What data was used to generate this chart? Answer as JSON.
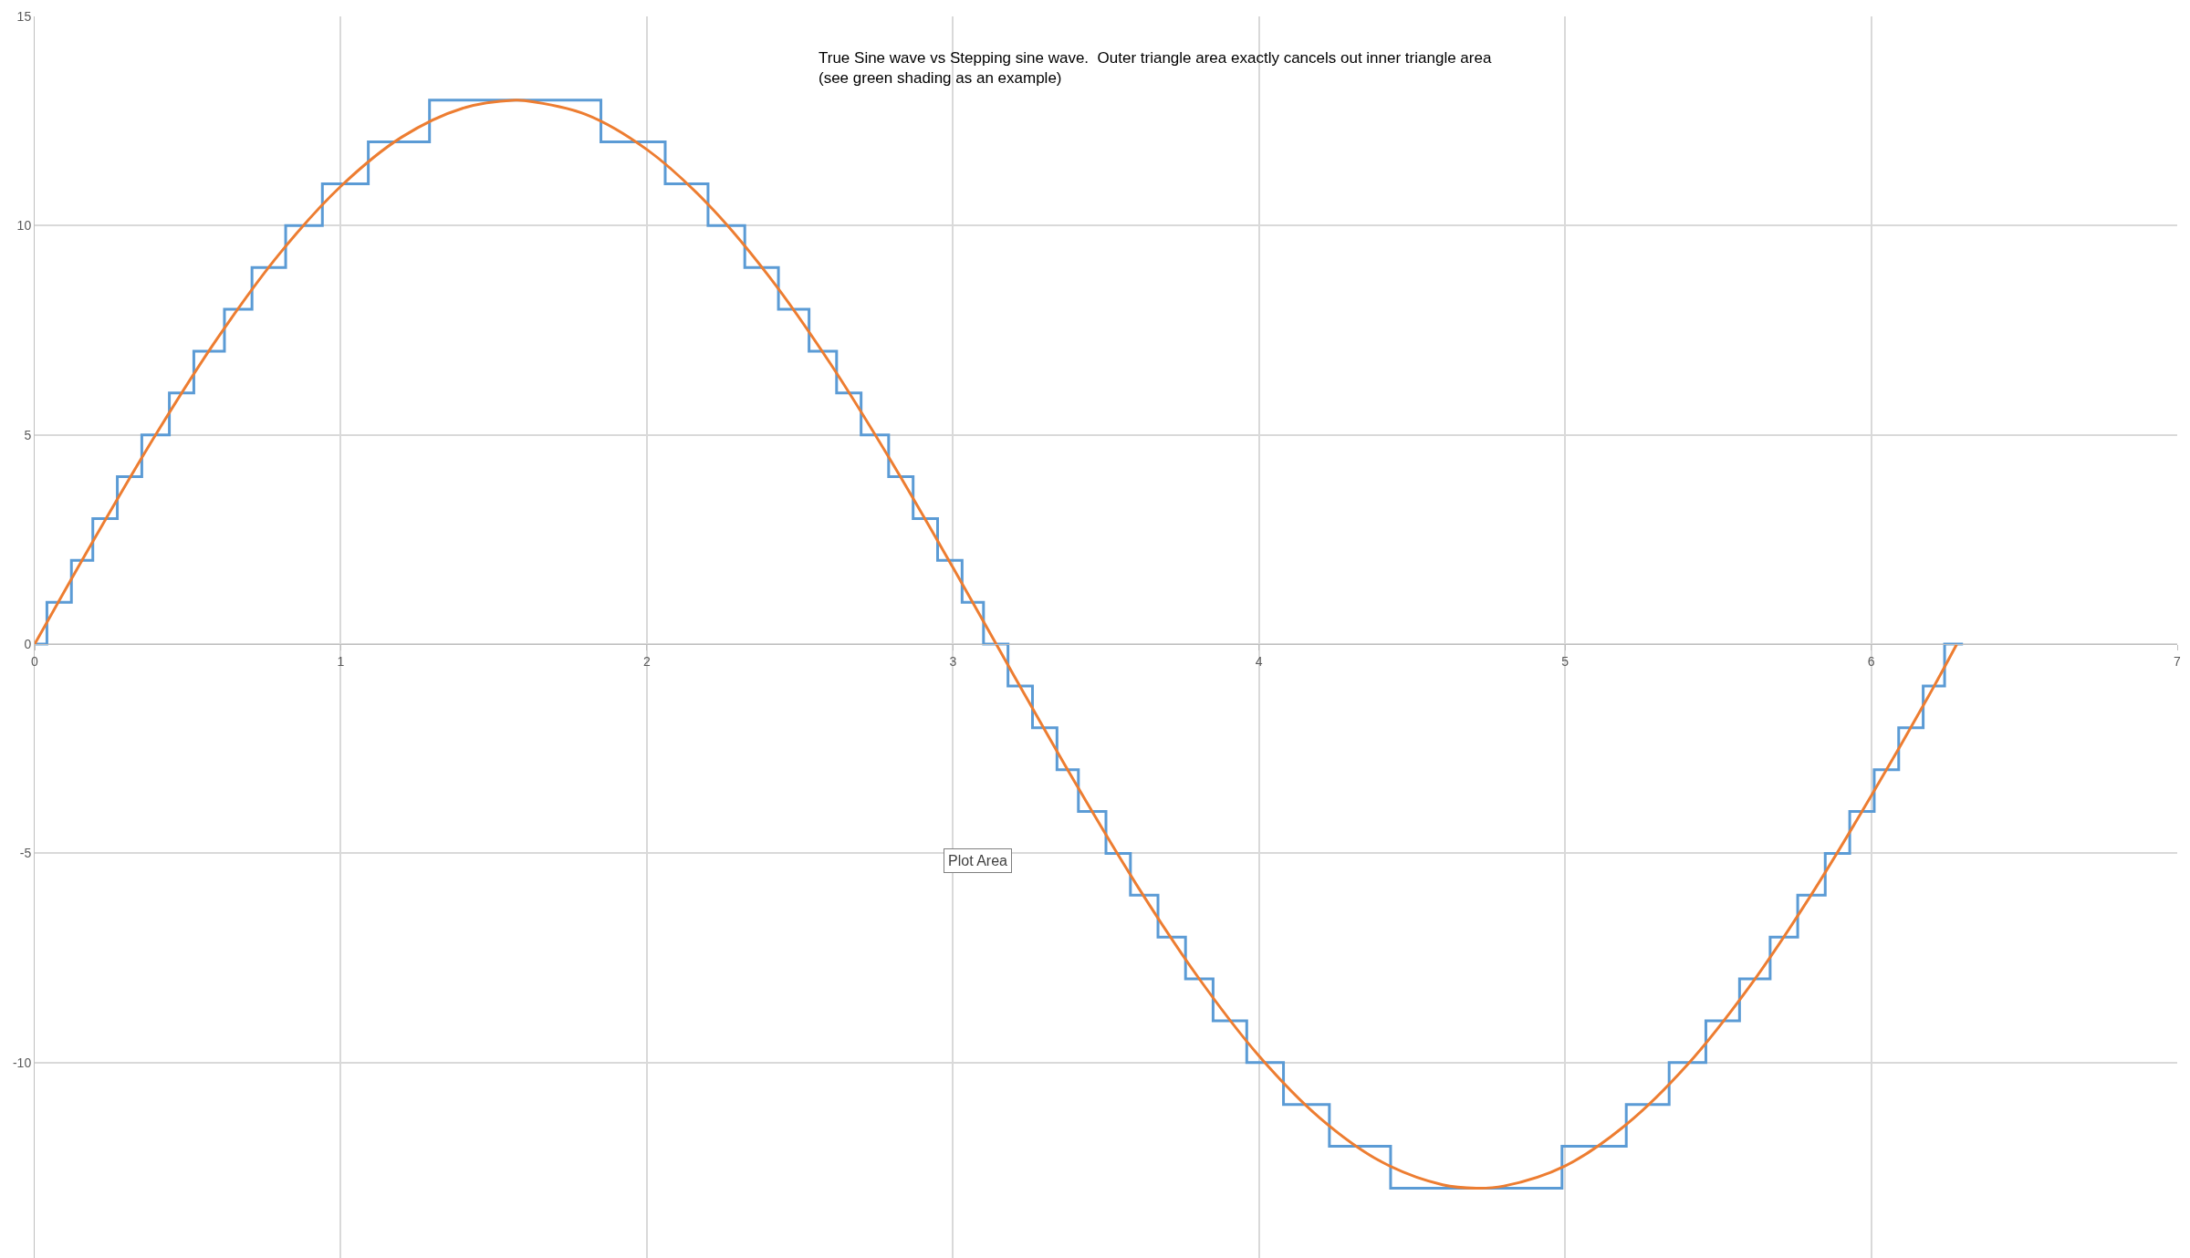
{
  "chart_data": {
    "type": "line",
    "annotations": [
      "True Sine wave vs Stepping sine wave.  Outer triangle area exactly cancels out inner triangle area\n(see green shading as an example)",
      "Plot Area"
    ],
    "xlim": [
      0,
      7
    ],
    "xticks": [
      0,
      1,
      2,
      3,
      4,
      5,
      6,
      7
    ],
    "ylim": [
      -14.67,
      15
    ],
    "yticks": [
      -10,
      -5,
      0,
      5,
      10,
      15
    ],
    "grid": true,
    "legend": false,
    "marker": "none",
    "series": [
      {
        "type": "step",
        "color": "#5b9bd5",
        "x": [
          0,
          0.04,
          0.12,
          0.19,
          0.27,
          0.35,
          0.44,
          0.52,
          0.62,
          0.71,
          0.82,
          0.94,
          1.09,
          1.29,
          1.85,
          2.06,
          2.2,
          2.32,
          2.43,
          2.53,
          2.62,
          2.7,
          2.79,
          2.87,
          2.95,
          3.03,
          3.1,
          3.18,
          3.26,
          3.34,
          3.41,
          3.5,
          3.58,
          3.67,
          3.76,
          3.85,
          3.96,
          4.08,
          4.23,
          4.43,
          4.99,
          5.2,
          5.34,
          5.46,
          5.57,
          5.67,
          5.76,
          5.85,
          5.93,
          6.01,
          6.09,
          6.17,
          6.24,
          6.3
        ],
        "values": [
          0,
          1,
          2,
          3,
          4,
          5,
          6,
          7,
          8,
          9,
          10,
          11,
          12,
          13,
          12,
          11,
          10,
          9,
          8,
          7,
          6,
          5,
          4,
          3,
          2,
          1,
          0,
          -1,
          -2,
          -3,
          -4,
          -5,
          -6,
          -7,
          -8,
          -9,
          -10,
          -11,
          -12,
          -13,
          -12,
          -11,
          -10,
          -9,
          -8,
          -7,
          -6,
          -5,
          -4,
          -3,
          -2,
          -1,
          0,
          0
        ]
      },
      {
        "color": "#ed7d31",
        "x": [
          0,
          0.2,
          0.4,
          0.6,
          0.8,
          1.0,
          1.2,
          1.4,
          1.57,
          1.6,
          1.8,
          2.0,
          2.2,
          2.4,
          2.6,
          2.8,
          3.0,
          3.2,
          3.4,
          3.6,
          3.8,
          4.0,
          4.2,
          4.4,
          4.6,
          4.71,
          4.8,
          5.0,
          5.2,
          5.4,
          5.6,
          5.8,
          6.0,
          6.2,
          6.28
        ],
        "values": [
          0,
          2.58,
          5.06,
          7.34,
          9.33,
          10.94,
          12.12,
          12.81,
          13,
          12.99,
          12.66,
          11.82,
          10.51,
          8.78,
          6.7,
          4.35,
          1.83,
          -0.76,
          -3.32,
          -5.75,
          -7.95,
          -9.84,
          -11.33,
          -12.37,
          -12.92,
          -13,
          -12.95,
          -12.47,
          -11.48,
          -10.05,
          -8.21,
          -6.04,
          -3.63,
          -1.08,
          0
        ]
      }
    ]
  }
}
